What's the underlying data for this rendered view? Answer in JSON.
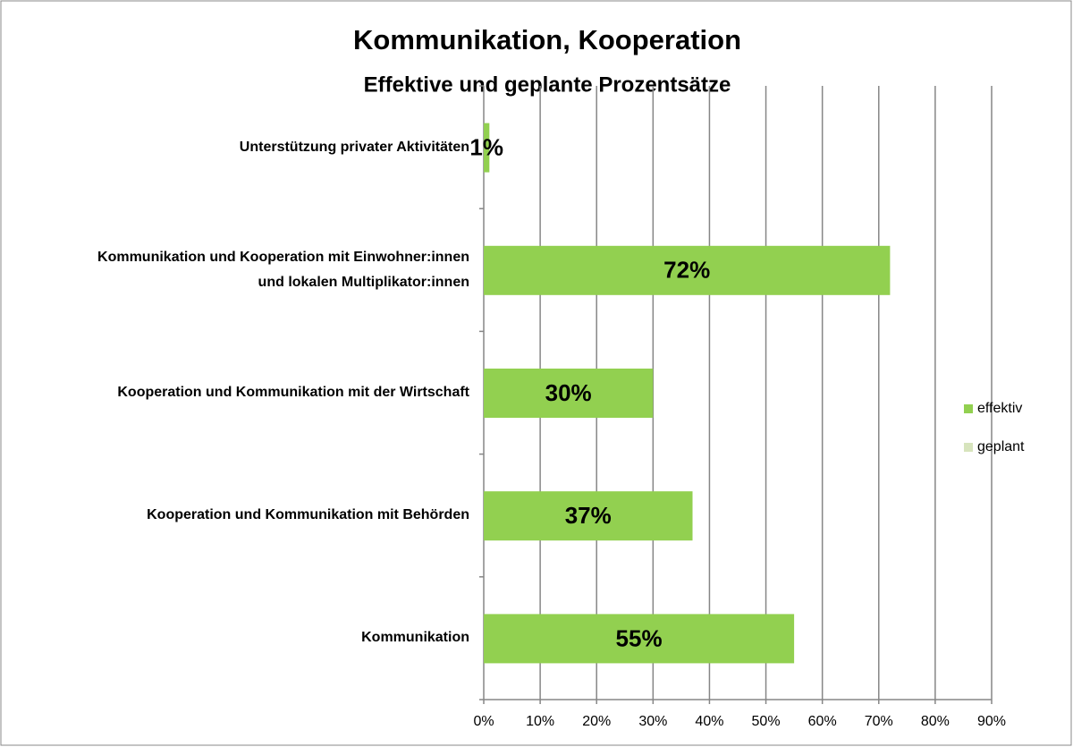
{
  "chart_data": {
    "type": "barh",
    "title": "Kommunikation, Kooperation",
    "subtitle": "Effektive und geplante Prozentsätze",
    "categories": [
      "Unterstützung privater Aktivitäten",
      "Kommunikation und Kooperation mit Einwohner:innen\nund lokalen Multiplikator:innen",
      "Kooperation und Kommunikation mit der Wirtschaft",
      "Kooperation und Kommunikation mit Behörden",
      "Kommunikation"
    ],
    "series": [
      {
        "name": "effektiv",
        "color": "#92d050",
        "values": [
          1,
          72,
          30,
          37,
          55
        ],
        "value_labels": [
          "1%",
          "72%",
          "30%",
          "37%",
          "55%"
        ]
      },
      {
        "name": "geplant",
        "color": "#d7e4bd",
        "values": [
          null,
          null,
          null,
          null,
          null
        ]
      }
    ],
    "xlim": [
      0,
      90
    ],
    "xticks": [
      {
        "value": 0,
        "label": "0%"
      },
      {
        "value": 10,
        "label": "10%"
      },
      {
        "value": 20,
        "label": "20%"
      },
      {
        "value": 30,
        "label": "30%"
      },
      {
        "value": 40,
        "label": "40%"
      },
      {
        "value": 50,
        "label": "50%"
      },
      {
        "value": 60,
        "label": "60%"
      },
      {
        "value": 70,
        "label": "70%"
      },
      {
        "value": 80,
        "label": "80%"
      },
      {
        "value": 90,
        "label": "90%"
      }
    ],
    "grid": true,
    "legend": "right"
  }
}
